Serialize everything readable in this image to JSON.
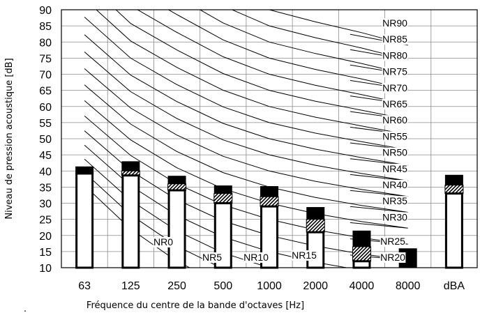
{
  "chart_data": {
    "type": "bar",
    "xlabel": "Fréquence du centre de la bande d'octaves [Hz]",
    "ylabel": "Niveau de pression acoustique [dB]",
    "ylim": [
      10,
      90
    ],
    "yticks": [
      10,
      15,
      20,
      25,
      30,
      35,
      40,
      45,
      50,
      55,
      60,
      65,
      70,
      75,
      80,
      85,
      90
    ],
    "grid": true,
    "categories": [
      "63",
      "125",
      "250",
      "500",
      "1000",
      "2000",
      "4000",
      "8000",
      "dBA"
    ],
    "series": [
      {
        "values": [
          39.2,
          38.6,
          34.0,
          30.0,
          29.0,
          21.0,
          12.0,
          10.0,
          33.0
        ]
      },
      {
        "values": [
          39.2,
          40.0,
          36.0,
          33.0,
          32.0,
          25.0,
          16.5,
          10.0,
          35.6
        ]
      },
      {
        "values": [
          41.4,
          43.0,
          38.5,
          35.5,
          35.3,
          28.8,
          21.5,
          16.0,
          38.8
        ]
      }
    ],
    "nr_curves": {
      "labels": [
        "NR0",
        "NR5",
        "NR10",
        "NR15",
        "NR20",
        "NR25",
        "NR30",
        "NR35",
        "NR40",
        "NR45",
        "NR50",
        "NR55",
        "NR60",
        "NR65",
        "NR70",
        "NR75",
        "NR80",
        "NR85",
        "NR90"
      ],
      "levels": [
        0,
        5,
        10,
        15,
        20,
        25,
        30,
        35,
        40,
        45,
        50,
        55,
        60,
        65,
        70,
        75,
        80,
        85,
        90
      ]
    },
    "footnote": "."
  }
}
